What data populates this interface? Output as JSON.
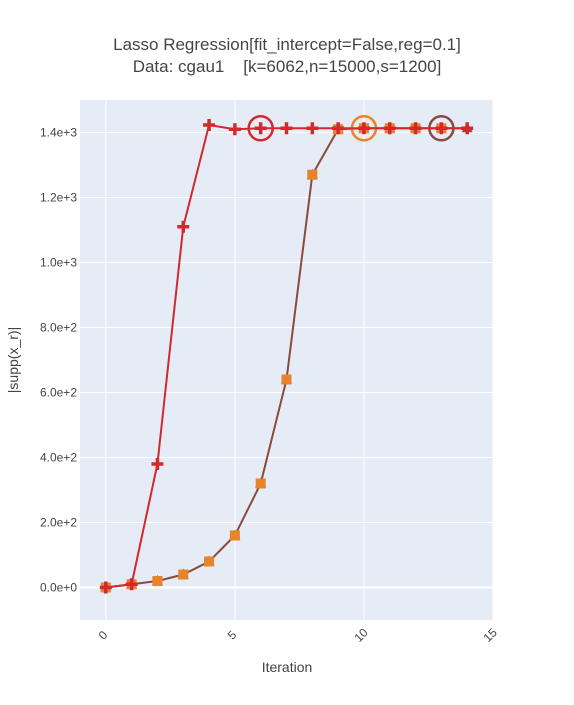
{
  "chart_data": {
    "type": "line",
    "title": "Lasso Regression[fit_intercept=False,reg=0.1]",
    "subtitle": "Data: cgau1    [k=6062,n=15000,s=1200]",
    "xlabel": "Iteration",
    "ylabel": "|supp(x_r)|",
    "xlim": [
      -1,
      15
    ],
    "ylim": [
      -100,
      1500
    ],
    "x_ticks": [
      0,
      5,
      10,
      15
    ],
    "x_tick_labels": [
      "0",
      "5",
      "10",
      "15"
    ],
    "y_ticks": [
      0,
      200,
      400,
      600,
      800,
      1000,
      1200,
      1400
    ],
    "y_tick_labels": [
      "0.0e+0",
      "2.0e+2",
      "4.0e+2",
      "6.0e+2",
      "8.0e+2",
      "1.0e+3",
      "1.2e+3",
      "1.4e+3"
    ],
    "grid": true,
    "background": "#E5ECF6",
    "series": [
      {
        "marker": "square",
        "color": "#E8832A",
        "line": false,
        "x": [
          0,
          1,
          2,
          3,
          4,
          5,
          6,
          7,
          8,
          9,
          10,
          11,
          12,
          13
        ],
        "y": [
          0,
          10,
          20,
          40,
          80,
          160,
          320,
          640,
          1270,
          1410,
          1413,
          1413,
          1413,
          1413
        ],
        "highlight_x": 10
      },
      {
        "marker": "triangle",
        "color": "#8B4A3C",
        "line": true,
        "x": [
          0,
          1,
          2,
          3,
          4,
          5,
          6,
          7,
          8,
          9,
          10,
          11,
          12,
          13,
          14
        ],
        "y": [
          0,
          10,
          20,
          40,
          80,
          160,
          320,
          640,
          1270,
          1410,
          1413,
          1413,
          1413,
          1413,
          1413
        ],
        "highlight_x": 13
      },
      {
        "marker": "cross",
        "color": "#D3282E",
        "line": true,
        "x": [
          0,
          1,
          2,
          3,
          4,
          5,
          6,
          7,
          8,
          9,
          10,
          11,
          12,
          13,
          14
        ],
        "y": [
          0,
          10,
          380,
          1110,
          1423,
          1410,
          1413,
          1413,
          1413,
          1413,
          1413,
          1413,
          1413,
          1413,
          1413
        ],
        "highlight_x": 6
      }
    ]
  }
}
